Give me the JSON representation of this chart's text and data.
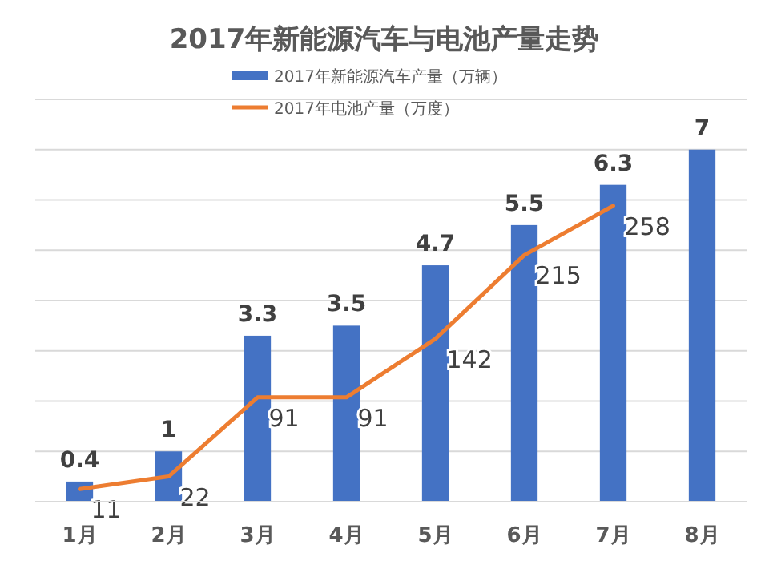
{
  "chart_data": {
    "type": "bar",
    "title": "2017年新能源汽车与电池产量走势",
    "categories": [
      "1月",
      "2月",
      "3月",
      "4月",
      "5月",
      "6月",
      "7月",
      "8月"
    ],
    "series": [
      {
        "name": "2017年新能源汽车产量（万辆）",
        "color": "#4472c4",
        "values": [
          0.4,
          1,
          3.3,
          3.5,
          4.7,
          5.5,
          6.3,
          7
        ]
      },
      {
        "name": "2017年电池产量（万度）",
        "type": "line",
        "axis": "y2",
        "color": "#ed7d31",
        "values": [
          11,
          22,
          91,
          91,
          142,
          215,
          258,
          null
        ]
      }
    ],
    "data_labels": true,
    "ylim": [
      0,
      8
    ],
    "yticks": [
      {
        "value": 0,
        "label": null
      },
      {
        "value": 1,
        "label": null
      },
      {
        "value": 2,
        "label": null
      },
      {
        "value": 3,
        "label": null
      },
      {
        "value": 4,
        "label": null
      },
      {
        "value": 5,
        "label": null
      },
      {
        "value": 6,
        "label": null
      },
      {
        "value": 7,
        "label": null
      },
      {
        "value": 8,
        "label": null
      }
    ],
    "grid": "y",
    "legend": "top",
    "tick_labels": "x"
  }
}
